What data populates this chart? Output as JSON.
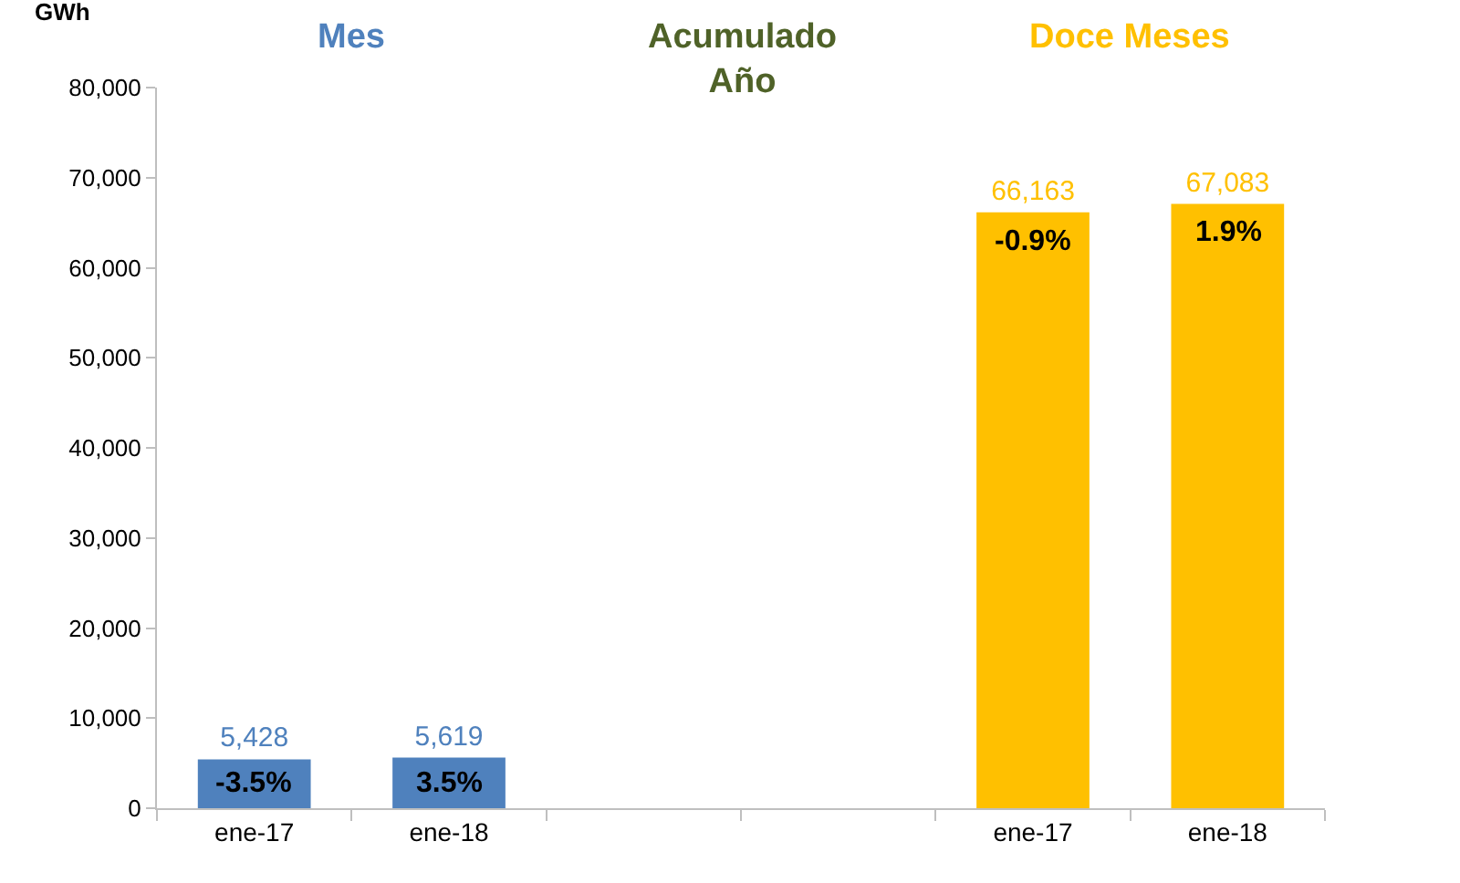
{
  "chart_data": {
    "type": "bar",
    "ylabel": "GWh",
    "categories": [
      "ene-17",
      "ene-18",
      null,
      null,
      "ene-17",
      "ene-18"
    ],
    "series": [
      {
        "name": "Mes",
        "color": "#4f81bd",
        "values": [
          5428,
          5619,
          null,
          null,
          null,
          null
        ],
        "value_labels": [
          "5,428",
          "5,619",
          null,
          null,
          null,
          null
        ]
      },
      {
        "name": "Acumulado Año",
        "color": "#4f6228",
        "values": [
          null,
          null,
          null,
          null,
          null,
          null
        ]
      },
      {
        "name": "Doce Meses",
        "color": "#ffc000",
        "values": [
          null,
          null,
          null,
          null,
          66163,
          67083
        ],
        "value_labels": [
          null,
          null,
          null,
          null,
          "66,163",
          "67,083"
        ]
      }
    ],
    "ylim": [
      0,
      80000
    ],
    "yticks": [
      {
        "value": 0,
        "label": "0"
      },
      {
        "value": 10000,
        "label": "10,000"
      },
      {
        "value": 20000,
        "label": "20,000"
      },
      {
        "value": 30000,
        "label": "30,000"
      },
      {
        "value": 40000,
        "label": "40,000"
      },
      {
        "value": 50000,
        "label": "50,000"
      },
      {
        "value": 60000,
        "label": "60,000"
      },
      {
        "value": 70000,
        "label": "70,000"
      },
      {
        "value": 80000,
        "label": "80,000"
      }
    ],
    "legend": false,
    "annotations": [
      "-3.5%",
      "3.5%",
      "-0.9%",
      "1.9%"
    ]
  }
}
